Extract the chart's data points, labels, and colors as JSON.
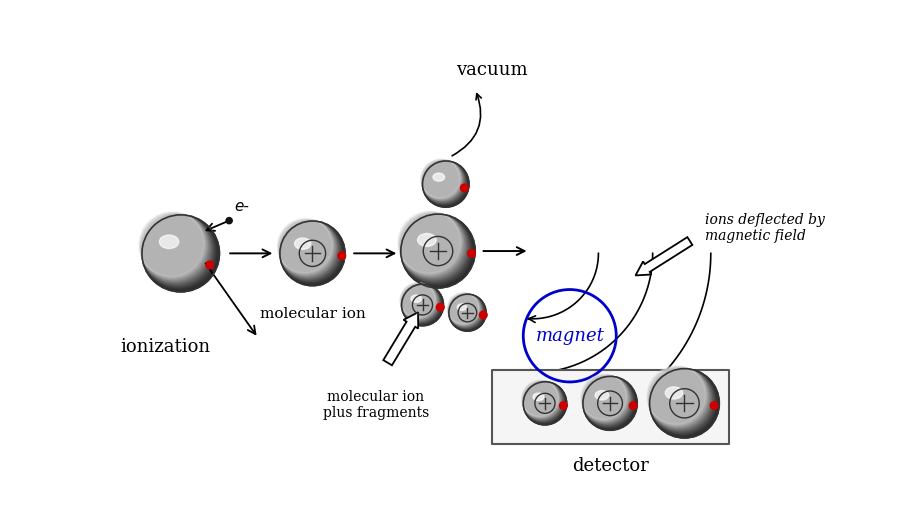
{
  "bg_color": "#ffffff",
  "red_dot_color": "#cc0000",
  "black_dot_color": "#111111",
  "magnet_color": "#0000cc",
  "arrow_color": "#111111",
  "text_color": "#111111",
  "ionization_label": "ionization",
  "mol_ion_label": "molecular ion",
  "fragments_label": "molecular ion\nplus fragments",
  "vacuum_label": "vacuum",
  "magnet_label": "magnet",
  "deflected_label": "ions deflected by\nmagnetic field",
  "detector_label": "detector",
  "e_label": "e-"
}
